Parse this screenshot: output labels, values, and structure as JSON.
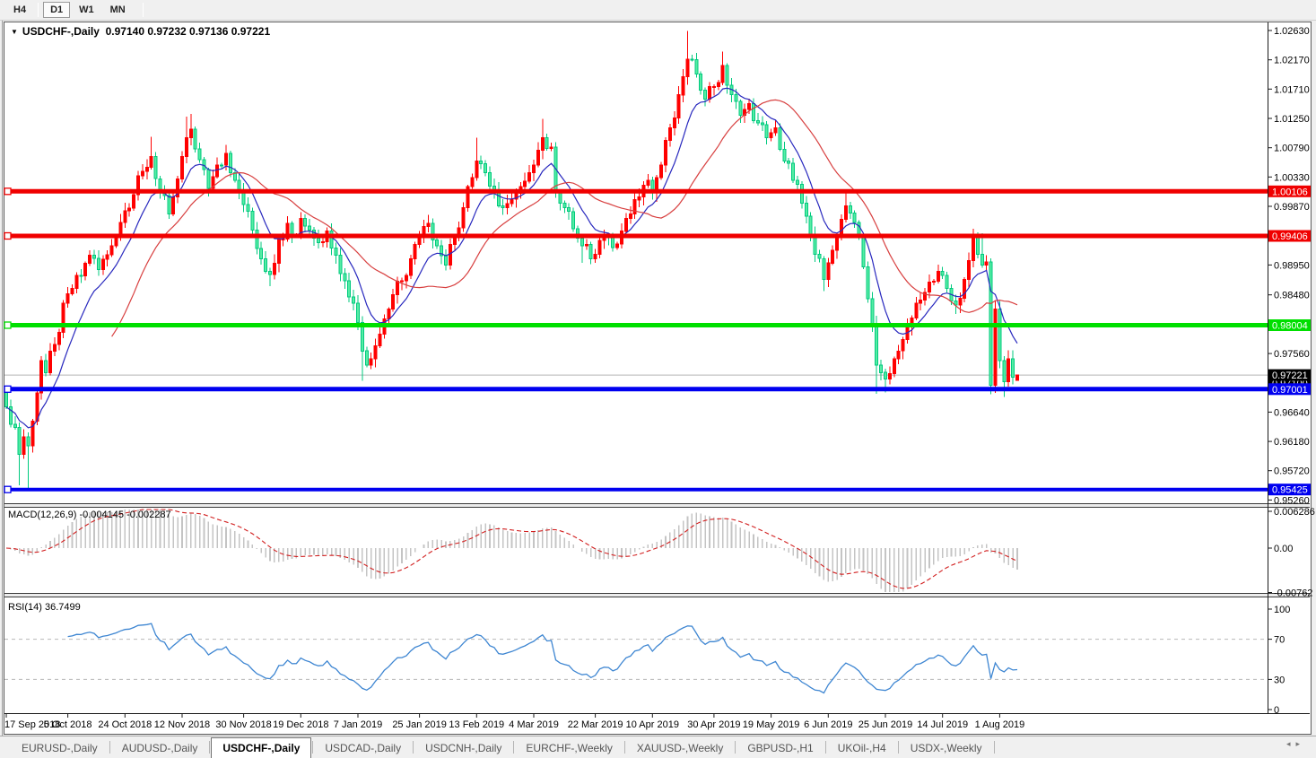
{
  "toolbar": {
    "timeframe_buttons": [
      {
        "label": "H4",
        "active": false
      },
      {
        "label": "D1",
        "active": true
      },
      {
        "label": "W1",
        "active": false
      },
      {
        "label": "MN",
        "active": false
      }
    ]
  },
  "chart": {
    "collapse_icon": "▼",
    "symbol": "USDCHF-,Daily",
    "ohlc_text": "0.97140 0.97232 0.97136 0.97221"
  },
  "price_axis": {
    "ticks": [
      "1.02630",
      "1.02170",
      "1.01710",
      "1.01250",
      "1.00790",
      "1.00330",
      "0.99870",
      "0.98950",
      "0.98480",
      "0.97560",
      "0.96640",
      "0.96180",
      "0.95720",
      "0.95260"
    ],
    "hidden_tick": "0.97100"
  },
  "hlines": [
    {
      "value": 1.00106,
      "label": "1.00106",
      "color": "#f00000",
      "thickness": 5
    },
    {
      "value": 0.99406,
      "label": "0.99406",
      "color": "#f00000",
      "thickness": 5
    },
    {
      "value": 0.98004,
      "label": "0.98004",
      "color": "#00df00",
      "thickness": 5
    },
    {
      "value": 0.97001,
      "label": "0.97001",
      "color": "#0000f0",
      "thickness": 5
    },
    {
      "value": 0.95425,
      "label": "0.95425",
      "color": "#0000f0",
      "thickness": 4
    }
  ],
  "current_price": {
    "value": 0.97221,
    "label": "0.97221",
    "line_color": "#b4b4b4",
    "label_bg": "#000000"
  },
  "date_axis": {
    "labels": [
      "17 Sep 2018",
      "5 Oct 2018",
      "24 Oct 2018",
      "12 Nov 2018",
      "30 Nov 2018",
      "19 Dec 2018",
      "7 Jan 2019",
      "25 Jan 2019",
      "13 Feb 2019",
      "4 Mar 2019",
      "22 Mar 2019",
      "10 Apr 2019",
      "30 Apr 2019",
      "19 May 2019",
      "6 Jun 2019",
      "25 Jun 2019",
      "14 Jul 2019",
      "1 Aug 2019"
    ],
    "indices": [
      0,
      14,
      27,
      40,
      54,
      67,
      80,
      94,
      107,
      120,
      134,
      147,
      161,
      174,
      187,
      200,
      213,
      226
    ]
  },
  "indicators": {
    "macd": {
      "label": "MACD(12,26,9) -0.004145 -0.002287",
      "params": [
        12,
        26,
        9
      ],
      "value_main": -0.004145,
      "value_signal": -0.002287,
      "axis_ticks": [
        "0.006286",
        "0.00",
        "-0.00762"
      ]
    },
    "rsi": {
      "label": "RSI(14) 36.7499",
      "period": 14,
      "value": 36.7499,
      "axis_ticks": [
        "100",
        "70",
        "30",
        "0"
      ],
      "levels": [
        70,
        30
      ]
    }
  },
  "tabs": {
    "items": [
      {
        "label": "EURUSD-,Daily",
        "active": false
      },
      {
        "label": "AUDUSD-,Daily",
        "active": false
      },
      {
        "label": "USDCHF-,Daily",
        "active": true
      },
      {
        "label": "USDCAD-,Daily",
        "active": false
      },
      {
        "label": "USDCNH-,Daily",
        "active": false
      },
      {
        "label": "EURCHF-,Weekly",
        "active": false
      },
      {
        "label": "XAUUSD-,Weekly",
        "active": false
      },
      {
        "label": "GBPUSD-,H1",
        "active": false
      },
      {
        "label": "UKOil-,H4",
        "active": false
      },
      {
        "label": "USDX-,Weekly",
        "active": false
      }
    ],
    "scroll_left": "◂",
    "scroll_right": "▸"
  },
  "chart_data": {
    "type": "candlestick",
    "symbol": "USDCHF",
    "timeframe": "Daily",
    "visible_range": {
      "start": "17 Sep 2018",
      "end": "9 Aug 2019"
    },
    "price_top": 1.02757,
    "price_bottom": 0.95195,
    "candle_count": 231,
    "open_first": 0.97,
    "close_anchors": [
      [
        0,
        0.9672
      ],
      [
        1,
        0.9645
      ],
      [
        2,
        0.964
      ],
      [
        3,
        0.9598
      ],
      [
        4,
        0.9625
      ],
      [
        5,
        0.9611
      ],
      [
        6,
        0.965
      ],
      [
        7,
        0.9694
      ],
      [
        8,
        0.9745
      ],
      [
        9,
        0.9726
      ],
      [
        11,
        0.977
      ],
      [
        14,
        0.985
      ],
      [
        17,
        0.9878
      ],
      [
        19,
        0.991
      ],
      [
        21,
        0.9888
      ],
      [
        24,
        0.9925
      ],
      [
        27,
        0.998
      ],
      [
        29,
        1.0005
      ],
      [
        31,
        1.0042
      ],
      [
        33,
        1.0065
      ],
      [
        35,
        1.001
      ],
      [
        37,
        0.9975
      ],
      [
        39,
        1.003
      ],
      [
        41,
        1.0095
      ],
      [
        42,
        1.0108
      ],
      [
        44,
        1.006
      ],
      [
        46,
        1.0015
      ],
      [
        48,
        1.0052
      ],
      [
        50,
        1.007
      ],
      [
        52,
        1.0028
      ],
      [
        54,
        0.999
      ],
      [
        56,
        0.995
      ],
      [
        58,
        0.9905
      ],
      [
        60,
        0.988
      ],
      [
        62,
        0.9935
      ],
      [
        64,
        0.996
      ],
      [
        66,
        0.9942
      ],
      [
        67,
        0.9968
      ],
      [
        69,
        0.995
      ],
      [
        71,
        0.993
      ],
      [
        73,
        0.9948
      ],
      [
        75,
        0.991
      ],
      [
        77,
        0.987
      ],
      [
        79,
        0.9835
      ],
      [
        80,
        0.9805
      ],
      [
        81,
        0.976
      ],
      [
        82,
        0.9738
      ],
      [
        84,
        0.9768
      ],
      [
        86,
        0.981
      ],
      [
        88,
        0.9848
      ],
      [
        90,
        0.987
      ],
      [
        92,
        0.9905
      ],
      [
        94,
        0.9938
      ],
      [
        96,
        0.996
      ],
      [
        98,
        0.9925
      ],
      [
        100,
        0.9895
      ],
      [
        102,
        0.9938
      ],
      [
        104,
        0.9985
      ],
      [
        106,
        1.0032
      ],
      [
        107,
        1.0058
      ],
      [
        109,
        1.004
      ],
      [
        111,
        1.0012
      ],
      [
        113,
        0.9985
      ],
      [
        115,
        0.9998
      ],
      [
        117,
        1.0018
      ],
      [
        119,
        1.004
      ],
      [
        121,
        1.0075
      ],
      [
        122,
        1.0095
      ],
      [
        124,
        1.008
      ],
      [
        125,
        1.0008
      ],
      [
        127,
        0.9985
      ],
      [
        129,
        0.9952
      ],
      [
        131,
        0.9925
      ],
      [
        134,
        0.9912
      ],
      [
        136,
        0.994
      ],
      [
        138,
        0.9922
      ],
      [
        140,
        0.9948
      ],
      [
        142,
        0.9975
      ],
      [
        144,
        1.0002
      ],
      [
        146,
        1.0028
      ],
      [
        147,
        1.0008
      ],
      [
        149,
        1.0052
      ],
      [
        151,
        1.011
      ],
      [
        153,
        1.0162
      ],
      [
        155,
        1.0218
      ],
      [
        157,
        1.0195
      ],
      [
        159,
        1.0155
      ],
      [
        161,
        1.0175
      ],
      [
        163,
        1.0208
      ],
      [
        165,
        1.0162
      ],
      [
        167,
        1.013
      ],
      [
        169,
        1.0148
      ],
      [
        171,
        1.0118
      ],
      [
        173,
        1.0095
      ],
      [
        175,
        1.011
      ],
      [
        177,
        1.0058
      ],
      [
        179,
        1.0028
      ],
      [
        181,
        0.9992
      ],
      [
        183,
        0.9942
      ],
      [
        185,
        0.9905
      ],
      [
        186,
        0.9872
      ],
      [
        187,
        0.9898
      ],
      [
        189,
        0.994
      ],
      [
        191,
        0.9988
      ],
      [
        193,
        0.9962
      ],
      [
        195,
        0.9892
      ],
      [
        197,
        0.9802
      ],
      [
        198,
        0.9738
      ],
      [
        200,
        0.9716
      ],
      [
        202,
        0.9748
      ],
      [
        204,
        0.9778
      ],
      [
        206,
        0.9812
      ],
      [
        208,
        0.984
      ],
      [
        210,
        0.9868
      ],
      [
        212,
        0.9885
      ],
      [
        214,
        0.9858
      ],
      [
        216,
        0.9832
      ],
      [
        218,
        0.9872
      ],
      [
        220,
        0.9938
      ],
      [
        221,
        0.9912
      ],
      [
        222,
        0.9895
      ],
      [
        223,
        0.99
      ],
      [
        224,
        0.9706
      ],
      [
        225,
        0.9826
      ],
      [
        226,
        0.9745
      ],
      [
        227,
        0.9712
      ],
      [
        228,
        0.9748
      ],
      [
        229,
        0.9719
      ],
      [
        230,
        0.9722
      ]
    ],
    "wick_high_overrides": {
      "33": 1.0096,
      "41": 1.0128,
      "42": 1.0132,
      "107": 1.0095,
      "122": 1.0124,
      "155": 1.0262,
      "163": 1.023,
      "191": 1.001,
      "220": 0.9952,
      "222": 0.9945,
      "230": 0.97232
    },
    "wick_low_overrides": {
      "3": 0.9549,
      "5": 0.9543,
      "60": 0.9862,
      "81": 0.9713,
      "131": 0.9898,
      "186": 0.9854,
      "198": 0.9693,
      "200": 0.9695,
      "216": 0.9818,
      "224": 0.9692,
      "227": 0.9688,
      "230": 0.97136
    },
    "last_candle": {
      "open": 0.9714,
      "high": 0.97232,
      "low": 0.97136,
      "close": 0.97221
    },
    "ma_fast_period": 10,
    "ma_slow_period": 25,
    "colors": {
      "up": "#ff0000",
      "down_fill": "#55eda4",
      "down_edge": "#00c97e",
      "ma_fast": "#2828be",
      "ma_slow": "#d84040",
      "macd_hist": "#c4c4c4",
      "macd_signal": "#d22020",
      "rsi_line": "#3e86d2"
    }
  }
}
